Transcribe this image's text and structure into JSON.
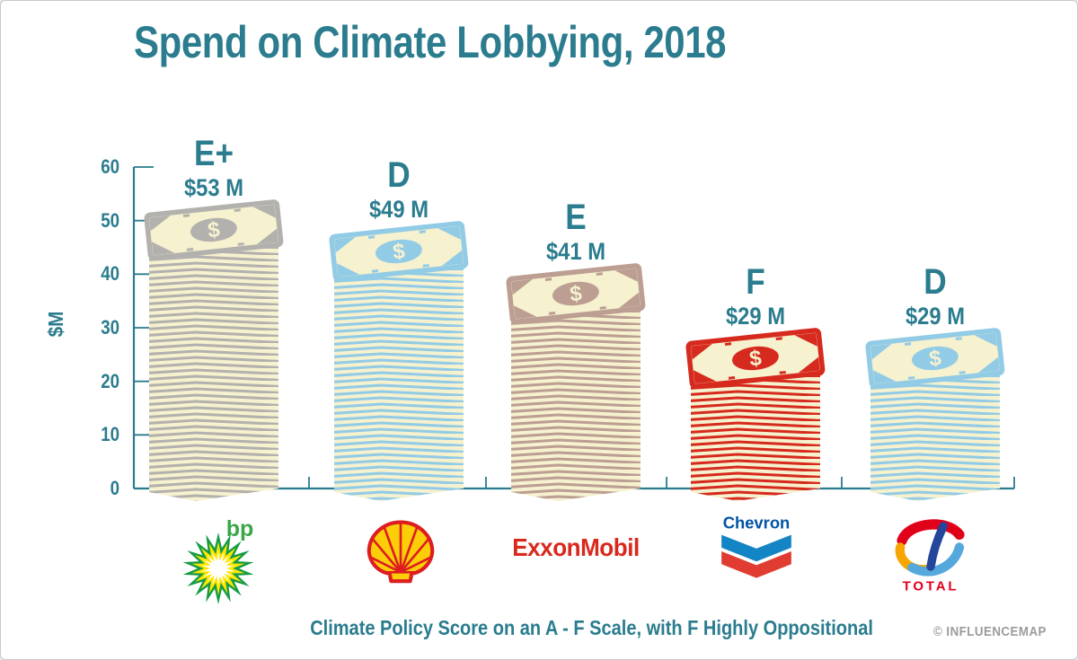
{
  "title": "Spend on Climate Lobbying, 2018",
  "y_axis": {
    "label": "$M",
    "ticks": [
      0,
      10,
      20,
      30,
      40,
      50,
      60
    ]
  },
  "footer": {
    "caption": "Climate Policy Score on an A - F Scale, with F Highly Oppositional",
    "credit": "© INFLUENCEMAP"
  },
  "colors": {
    "teal": "#2A7C8E",
    "cream": "#F6F1CE",
    "frame_gray": "#C9C9C9",
    "credit_gray": "#9B9B9B"
  },
  "chart_data": {
    "type": "bar",
    "title": "Spend on Climate Lobbying, 2018",
    "categories": [
      "BP",
      "Shell",
      "ExxonMobil",
      "Chevron",
      "Total"
    ],
    "values": [
      53,
      49,
      41,
      29,
      29
    ],
    "grades": [
      "E+",
      "D",
      "E",
      "F",
      "D"
    ],
    "value_labels": [
      "$53 M",
      "$49 M",
      "$41 M",
      "$29 M",
      "$29 M"
    ],
    "xlabel": "",
    "ylabel": "$M",
    "ylim": [
      0,
      60
    ],
    "yticks": [
      0,
      10,
      20,
      30,
      40,
      50,
      60
    ],
    "grid": false,
    "legend": "none",
    "note": "Bars drawn as stacks of banknotes; bar color indicates company, label above each bar is its Climate Policy Score grade and 2018 lobbying spend.",
    "bars": [
      {
        "id": "bp",
        "company": "BP",
        "grade": "E+",
        "amount_label": "$53 M",
        "value": 53,
        "stack_color": "#B3B1AE",
        "logo": {
          "text": "bp",
          "colors": {
            "outer": "#149B44",
            "mid": "#FFE600",
            "inner": "#FFFFFF",
            "text": "#3AA648"
          }
        }
      },
      {
        "id": "shell",
        "company": "Shell",
        "grade": "D",
        "amount_label": "$49 M",
        "value": 49,
        "stack_color": "#92CBE5",
        "logo": {
          "text": "",
          "colors": {
            "fill": "#FBCE07",
            "stroke": "#DD1D21"
          }
        }
      },
      {
        "id": "exxonmobil",
        "company": "ExxonMobil",
        "grade": "E",
        "amount_label": "$41 M",
        "value": 41,
        "stack_color": "#BC9E93",
        "logo": {
          "text": "ExxonMobil",
          "colors": {
            "text": "#DA291C"
          }
        }
      },
      {
        "id": "chevron",
        "company": "Chevron",
        "grade": "F",
        "amount_label": "$29 M",
        "value": 29,
        "stack_color": "#D62A1E",
        "logo": {
          "text": "Chevron",
          "colors": {
            "text": "#0054A4",
            "top": "#1384C4",
            "bottom": "#E03C31"
          }
        }
      },
      {
        "id": "total",
        "company": "Total",
        "grade": "D",
        "amount_label": "$29 M",
        "value": 29,
        "stack_color": "#92CBE5",
        "logo": {
          "text": "TOTAL",
          "colors": {
            "red": "#E1001A",
            "orange": "#F7A600",
            "lightblue": "#55A8DC",
            "darkblue": "#24469A",
            "text": "#E1001A"
          }
        }
      }
    ]
  }
}
